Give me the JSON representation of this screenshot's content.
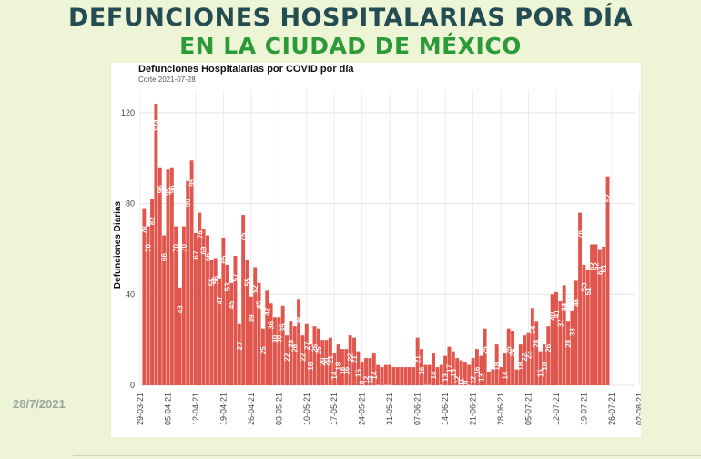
{
  "header": {
    "title_line1": "DEFUNCIONES HOSPITALARIAS POR DÍA",
    "title_line2": "EN LA CIUDAD DE MÉXICO"
  },
  "footer": {
    "date": "28/7/2021"
  },
  "colors": {
    "bar": "#e0554c",
    "title1": "#234d52",
    "title2": "#2d9a3a",
    "background": "#eef4d6"
  },
  "chart_data": {
    "type": "bar",
    "title": "Defunciones Hospitalarias por COVID por día",
    "subtitle": "Corte 2021-07-28",
    "xlabel": "",
    "ylabel": "Defunciones Diarias",
    "ylim": [
      0,
      130
    ],
    "yticks": [
      0,
      40,
      80,
      120
    ],
    "grid": true,
    "x_start": "2021-03-30",
    "xtick_labels": [
      "29-03-21",
      "05-04-21",
      "12-04-21",
      "19-04-21",
      "26-04-21",
      "03-05-21",
      "10-05-21",
      "17-05-21",
      "24-05-21",
      "31-05-21",
      "07-06-21",
      "14-06-21",
      "21-06-21",
      "28-06-21",
      "05-07-21",
      "12-07-21",
      "19-07-21",
      "26-07-21",
      "02-08-21"
    ],
    "values": [
      78,
      70,
      82,
      124,
      96,
      66,
      95,
      96,
      70,
      43,
      70,
      90,
      99,
      67,
      76,
      69,
      66,
      55,
      56,
      47,
      65,
      53,
      45,
      57,
      27,
      75,
      55,
      39,
      52,
      45,
      25,
      42,
      36,
      30,
      30,
      35,
      22,
      28,
      26,
      38,
      22,
      27,
      18,
      26,
      25,
      20,
      20,
      21,
      14,
      18,
      16,
      16,
      22,
      21,
      15,
      10,
      12,
      12,
      14,
      9,
      8,
      9,
      9,
      8,
      8,
      8,
      8,
      8,
      8,
      21,
      16,
      9,
      9,
      14,
      8,
      9,
      13,
      17,
      15,
      12,
      11,
      10,
      9,
      12,
      16,
      13,
      25,
      6,
      7,
      18,
      8,
      14,
      25,
      24,
      7,
      18,
      22,
      23,
      34,
      28,
      15,
      18,
      26,
      40,
      41,
      37,
      44,
      28,
      33,
      46,
      76,
      53,
      51,
      62,
      62,
      60,
      61,
      92
    ],
    "bar_labels": [
      "78",
      "70",
      "82",
      "124",
      "96",
      "66",
      "95",
      "96",
      "70",
      "43",
      "70",
      "90",
      "99",
      "67",
      "76",
      "69",
      "66",
      "55",
      "56",
      "47",
      "65",
      "53",
      "45",
      "57",
      "27",
      "75",
      "55",
      "39",
      "52",
      "45",
      "25",
      "42",
      "36",
      "30",
      "30",
      "35",
      "22",
      "28",
      "26",
      "38",
      "22",
      "27",
      "18",
      "26",
      "25",
      "20",
      "20",
      "21",
      "14",
      "18",
      "16",
      "16",
      "22",
      "21",
      "15",
      "10",
      "12",
      "12",
      "14",
      "9",
      "8",
      "9",
      "9",
      "8",
      "8",
      "8",
      "8",
      "8",
      "8",
      "21",
      "16",
      "9",
      "9",
      "14",
      "8",
      "9",
      "13",
      "17",
      "15",
      "12",
      "11",
      "10",
      "9",
      "12",
      "16",
      "13",
      "25",
      "6",
      "7",
      "18",
      "8",
      "14",
      "25",
      "24",
      "7",
      "18",
      "22",
      "23",
      "34",
      "28",
      "15",
      "18",
      "26",
      "40",
      "41",
      "37",
      "44",
      "28",
      "33",
      "46",
      "76",
      "53",
      "51",
      "62",
      "62",
      "60",
      "61",
      "92"
    ]
  }
}
